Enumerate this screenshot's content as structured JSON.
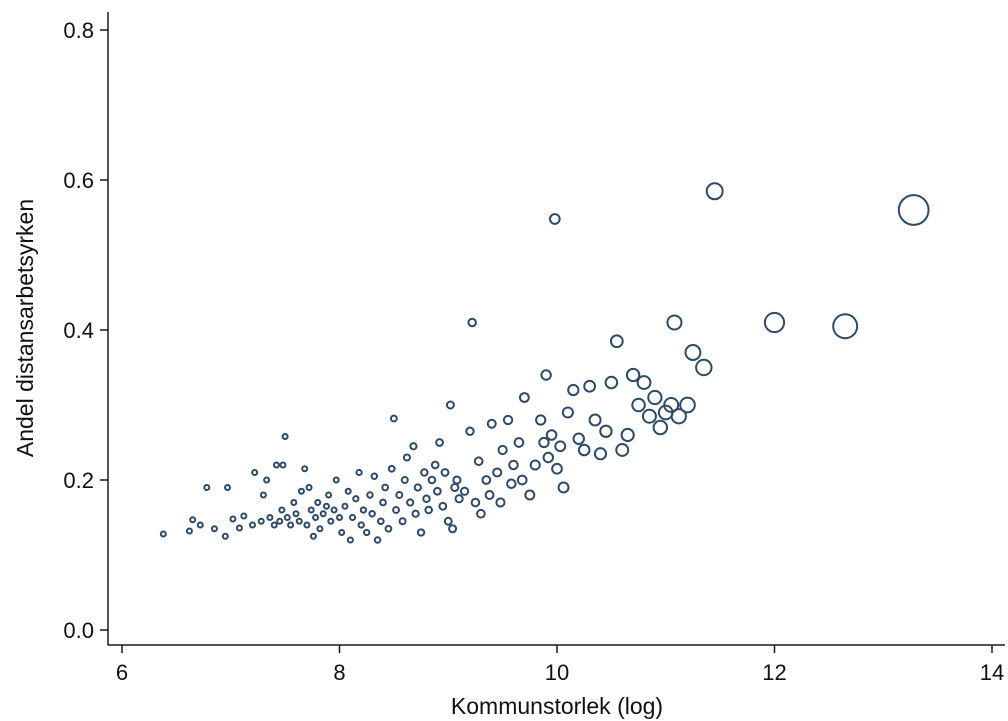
{
  "chart_data": {
    "type": "scatter",
    "title": "",
    "xlabel": "Kommunstorlek (log)",
    "ylabel": "Andel distansarbetsyrken",
    "xlim": [
      6,
      14
    ],
    "ylim": [
      0.0,
      0.8
    ],
    "xticks": [
      6,
      8,
      10,
      12,
      14
    ],
    "yticks": [
      0.0,
      0.2,
      0.4,
      0.6,
      0.8
    ],
    "xtick_labels": [
      "6",
      "8",
      "10",
      "12",
      "14"
    ],
    "ytick_labels": [
      "0.0",
      "0.2",
      "0.4",
      "0.6",
      "0.8"
    ],
    "grid": false,
    "legend": "none",
    "marker": "hollow circle, area proportional to municipality size",
    "colors": {
      "marker": "#2d4a6b",
      "axis": "#1a1a1a"
    },
    "points": [
      {
        "x": 6.38,
        "y": 0.128
      },
      {
        "x": 6.62,
        "y": 0.132
      },
      {
        "x": 6.65,
        "y": 0.147
      },
      {
        "x": 6.72,
        "y": 0.14
      },
      {
        "x": 6.78,
        "y": 0.19
      },
      {
        "x": 6.85,
        "y": 0.135
      },
      {
        "x": 6.95,
        "y": 0.125
      },
      {
        "x": 6.97,
        "y": 0.19
      },
      {
        "x": 7.02,
        "y": 0.148
      },
      {
        "x": 7.08,
        "y": 0.136
      },
      {
        "x": 7.12,
        "y": 0.152
      },
      {
        "x": 7.2,
        "y": 0.14
      },
      {
        "x": 7.22,
        "y": 0.21
      },
      {
        "x": 7.28,
        "y": 0.145
      },
      {
        "x": 7.3,
        "y": 0.18
      },
      {
        "x": 7.33,
        "y": 0.2
      },
      {
        "x": 7.36,
        "y": 0.15
      },
      {
        "x": 7.4,
        "y": 0.14
      },
      {
        "x": 7.42,
        "y": 0.22
      },
      {
        "x": 7.45,
        "y": 0.145
      },
      {
        "x": 7.47,
        "y": 0.16
      },
      {
        "x": 7.48,
        "y": 0.22
      },
      {
        "x": 7.5,
        "y": 0.258
      },
      {
        "x": 7.52,
        "y": 0.15
      },
      {
        "x": 7.55,
        "y": 0.14
      },
      {
        "x": 7.58,
        "y": 0.17
      },
      {
        "x": 7.6,
        "y": 0.155
      },
      {
        "x": 7.63,
        "y": 0.145
      },
      {
        "x": 7.65,
        "y": 0.185
      },
      {
        "x": 7.68,
        "y": 0.215
      },
      {
        "x": 7.7,
        "y": 0.14
      },
      {
        "x": 7.72,
        "y": 0.19
      },
      {
        "x": 7.74,
        "y": 0.16
      },
      {
        "x": 7.76,
        "y": 0.125
      },
      {
        "x": 7.78,
        "y": 0.15
      },
      {
        "x": 7.8,
        "y": 0.17
      },
      {
        "x": 7.82,
        "y": 0.135
      },
      {
        "x": 7.85,
        "y": 0.155
      },
      {
        "x": 7.88,
        "y": 0.165
      },
      {
        "x": 7.9,
        "y": 0.18
      },
      {
        "x": 7.92,
        "y": 0.145
      },
      {
        "x": 7.95,
        "y": 0.16
      },
      {
        "x": 7.97,
        "y": 0.2
      },
      {
        "x": 8.0,
        "y": 0.15
      },
      {
        "x": 8.02,
        "y": 0.13
      },
      {
        "x": 8.05,
        "y": 0.165
      },
      {
        "x": 8.08,
        "y": 0.185
      },
      {
        "x": 8.1,
        "y": 0.12
      },
      {
        "x": 8.12,
        "y": 0.15
      },
      {
        "x": 8.15,
        "y": 0.175
      },
      {
        "x": 8.18,
        "y": 0.21
      },
      {
        "x": 8.2,
        "y": 0.14
      },
      {
        "x": 8.22,
        "y": 0.16
      },
      {
        "x": 8.25,
        "y": 0.13
      },
      {
        "x": 8.28,
        "y": 0.18
      },
      {
        "x": 8.3,
        "y": 0.155
      },
      {
        "x": 8.32,
        "y": 0.205
      },
      {
        "x": 8.35,
        "y": 0.12
      },
      {
        "x": 8.38,
        "y": 0.145
      },
      {
        "x": 8.4,
        "y": 0.17
      },
      {
        "x": 8.42,
        "y": 0.19
      },
      {
        "x": 8.45,
        "y": 0.135
      },
      {
        "x": 8.48,
        "y": 0.215
      },
      {
        "x": 8.5,
        "y": 0.282
      },
      {
        "x": 8.52,
        "y": 0.16
      },
      {
        "x": 8.55,
        "y": 0.18
      },
      {
        "x": 8.58,
        "y": 0.145
      },
      {
        "x": 8.6,
        "y": 0.2
      },
      {
        "x": 8.62,
        "y": 0.23
      },
      {
        "x": 8.65,
        "y": 0.17
      },
      {
        "x": 8.68,
        "y": 0.245
      },
      {
        "x": 8.7,
        "y": 0.155
      },
      {
        "x": 8.72,
        "y": 0.19
      },
      {
        "x": 8.75,
        "y": 0.13
      },
      {
        "x": 8.78,
        "y": 0.21
      },
      {
        "x": 8.8,
        "y": 0.175
      },
      {
        "x": 8.82,
        "y": 0.16
      },
      {
        "x": 8.85,
        "y": 0.2
      },
      {
        "x": 8.88,
        "y": 0.22
      },
      {
        "x": 8.9,
        "y": 0.185
      },
      {
        "x": 8.92,
        "y": 0.25
      },
      {
        "x": 8.95,
        "y": 0.165
      },
      {
        "x": 8.97,
        "y": 0.21
      },
      {
        "x": 9.0,
        "y": 0.145
      },
      {
        "x": 9.02,
        "y": 0.3
      },
      {
        "x": 9.04,
        "y": 0.135
      },
      {
        "x": 9.06,
        "y": 0.19
      },
      {
        "x": 9.08,
        "y": 0.2
      },
      {
        "x": 9.1,
        "y": 0.175
      },
      {
        "x": 9.15,
        "y": 0.185
      },
      {
        "x": 9.2,
        "y": 0.265
      },
      {
        "x": 9.22,
        "y": 0.41
      },
      {
        "x": 9.25,
        "y": 0.17
      },
      {
        "x": 9.28,
        "y": 0.225
      },
      {
        "x": 9.3,
        "y": 0.155
      },
      {
        "x": 9.35,
        "y": 0.2
      },
      {
        "x": 9.38,
        "y": 0.18
      },
      {
        "x": 9.4,
        "y": 0.275
      },
      {
        "x": 9.45,
        "y": 0.21
      },
      {
        "x": 9.48,
        "y": 0.17
      },
      {
        "x": 9.5,
        "y": 0.24
      },
      {
        "x": 9.55,
        "y": 0.28
      },
      {
        "x": 9.58,
        "y": 0.195
      },
      {
        "x": 9.6,
        "y": 0.22
      },
      {
        "x": 9.65,
        "y": 0.25
      },
      {
        "x": 9.68,
        "y": 0.2
      },
      {
        "x": 9.7,
        "y": 0.31
      },
      {
        "x": 9.75,
        "y": 0.18
      },
      {
        "x": 9.8,
        "y": 0.22
      },
      {
        "x": 9.85,
        "y": 0.28
      },
      {
        "x": 9.88,
        "y": 0.25
      },
      {
        "x": 9.9,
        "y": 0.34
      },
      {
        "x": 9.92,
        "y": 0.23
      },
      {
        "x": 9.95,
        "y": 0.26
      },
      {
        "x": 9.98,
        "y": 0.548
      },
      {
        "x": 10.0,
        "y": 0.215
      },
      {
        "x": 10.03,
        "y": 0.245
      },
      {
        "x": 10.06,
        "y": 0.19
      },
      {
        "x": 10.1,
        "y": 0.29
      },
      {
        "x": 10.15,
        "y": 0.32
      },
      {
        "x": 10.2,
        "y": 0.255
      },
      {
        "x": 10.25,
        "y": 0.24
      },
      {
        "x": 10.3,
        "y": 0.325
      },
      {
        "x": 10.35,
        "y": 0.28
      },
      {
        "x": 10.4,
        "y": 0.235
      },
      {
        "x": 10.45,
        "y": 0.265
      },
      {
        "x": 10.5,
        "y": 0.33
      },
      {
        "x": 10.55,
        "y": 0.385
      },
      {
        "x": 10.6,
        "y": 0.24
      },
      {
        "x": 10.65,
        "y": 0.26
      },
      {
        "x": 10.7,
        "y": 0.34
      },
      {
        "x": 10.75,
        "y": 0.3
      },
      {
        "x": 10.8,
        "y": 0.33
      },
      {
        "x": 10.85,
        "y": 0.285
      },
      {
        "x": 10.9,
        "y": 0.31
      },
      {
        "x": 10.95,
        "y": 0.27
      },
      {
        "x": 11.0,
        "y": 0.29
      },
      {
        "x": 11.05,
        "y": 0.3
      },
      {
        "x": 11.08,
        "y": 0.41
      },
      {
        "x": 11.12,
        "y": 0.285
      },
      {
        "x": 11.2,
        "y": 0.3
      },
      {
        "x": 11.25,
        "y": 0.37
      },
      {
        "x": 11.35,
        "y": 0.35
      },
      {
        "x": 11.45,
        "y": 0.585
      },
      {
        "x": 12.0,
        "y": 0.41
      },
      {
        "x": 12.65,
        "y": 0.405
      },
      {
        "x": 13.28,
        "y": 0.56
      }
    ]
  }
}
